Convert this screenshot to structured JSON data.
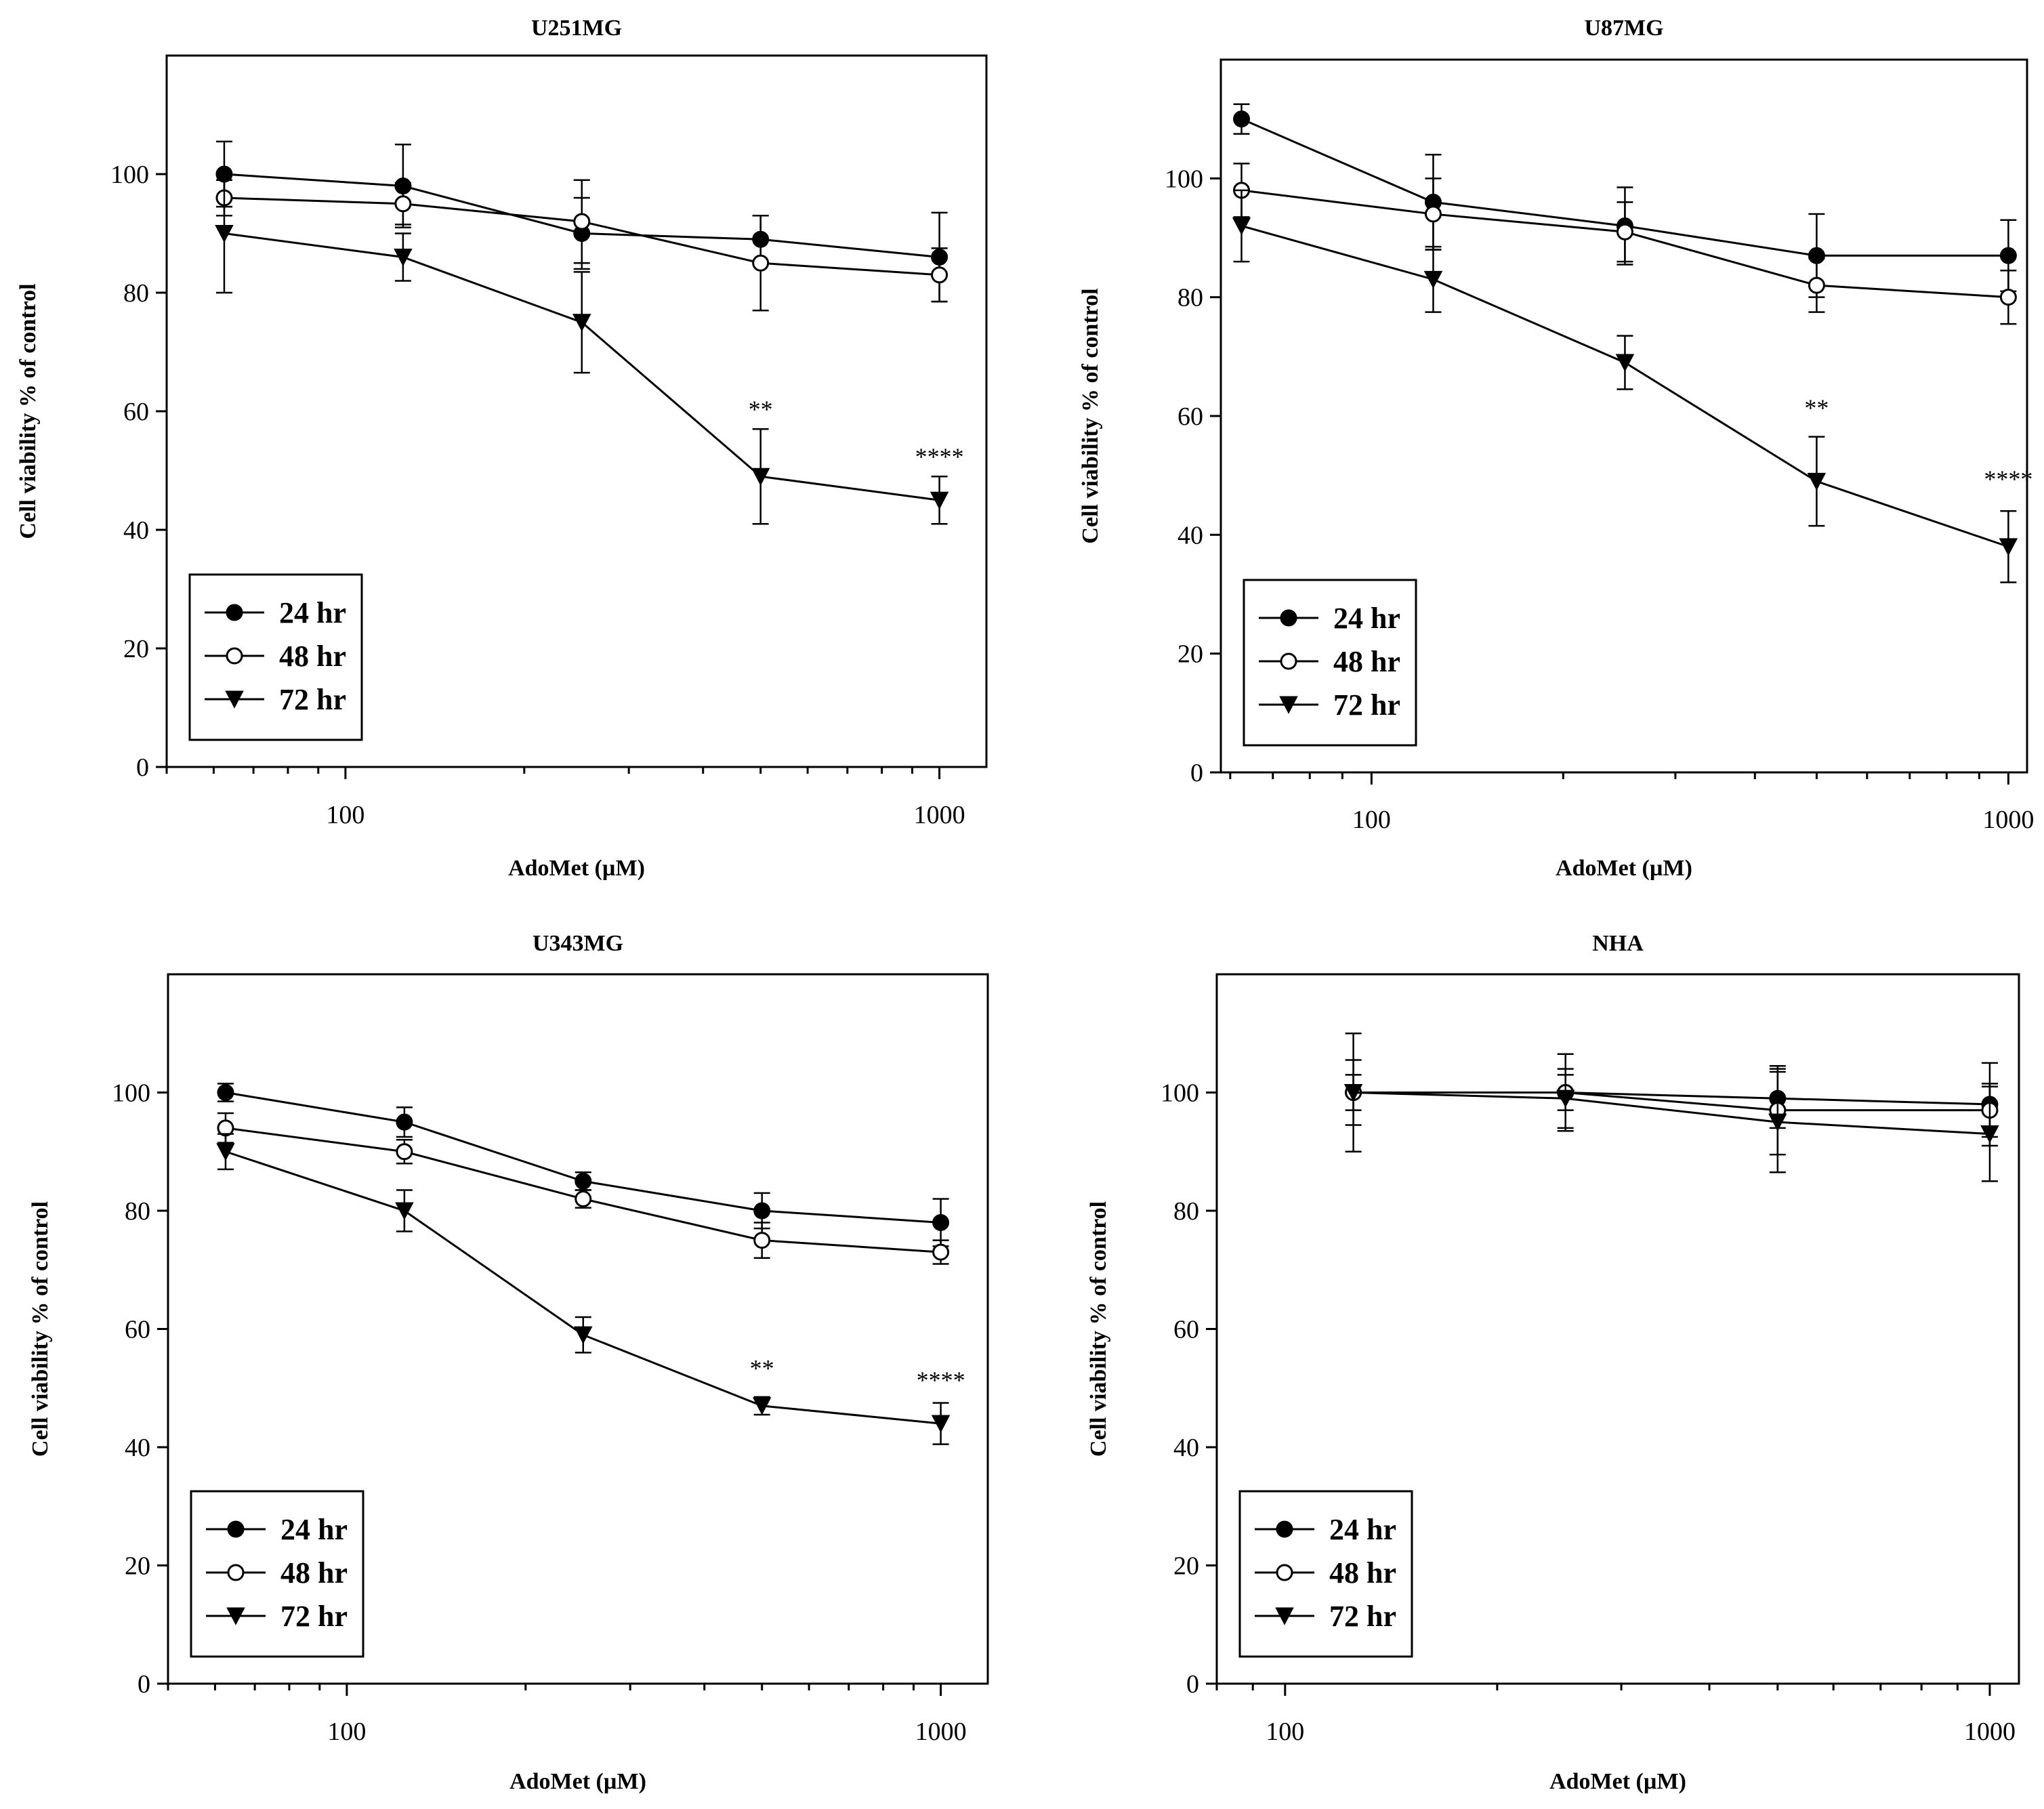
{
  "figure": {
    "series_names": [
      "24 hr",
      "48 hr",
      "72 hr"
    ],
    "series_markers": [
      "filled-circle",
      "open-circle",
      "filled-triangle-down"
    ],
    "line_color": "#000000",
    "background_color": "#ffffff"
  },
  "chart_data": [
    {
      "type": "line",
      "title": "U251MG",
      "xlabel": "AdoMet (µM)",
      "ylabel": "Cell viability % of control",
      "xscale": "log",
      "xlim": [
        50,
        1200
      ],
      "ylim": [
        0,
        120
      ],
      "x_ticks": [
        100,
        1000
      ],
      "x_tick_labels": [
        "100",
        "1000"
      ],
      "y_ticks": [
        0,
        20,
        40,
        60,
        80,
        100
      ],
      "y_tick_labels": [
        "0",
        "20",
        "40",
        "60",
        "80",
        "100"
      ],
      "legend_position": "bottom-left",
      "x": [
        62.5,
        125,
        250,
        500,
        1000
      ],
      "series": [
        {
          "name": "24 hr",
          "values": [
            100,
            98,
            90,
            89,
            86
          ],
          "errors": [
            5.5,
            7,
            6,
            4,
            7.5
          ]
        },
        {
          "name": "48 hr",
          "values": [
            96,
            95,
            92,
            85,
            83
          ],
          "errors": [
            3,
            3.5,
            7,
            8,
            4.5
          ]
        },
        {
          "name": "72 hr",
          "values": [
            90,
            86,
            75,
            49,
            45
          ],
          "errors": [
            10,
            4,
            8.5,
            8,
            4
          ]
        }
      ],
      "annotations": [
        {
          "x": 500,
          "y": 59,
          "text": "**"
        },
        {
          "x": 1000,
          "y": 51,
          "text": "****"
        }
      ]
    },
    {
      "type": "line",
      "title": "U87MG",
      "xlabel": "AdoMet (µM)",
      "ylabel": "Cell viability % of control",
      "xscale": "log",
      "xlim": [
        58,
        1070
      ],
      "ylim": [
        0,
        120
      ],
      "x_ticks": [
        100,
        1000
      ],
      "x_tick_labels": [
        "100",
        "1000"
      ],
      "y_ticks": [
        0,
        20,
        40,
        60,
        80,
        100
      ],
      "y_tick_labels": [
        "0",
        "20",
        "40",
        "60",
        "80",
        "100"
      ],
      "legend_position": "bottom-left",
      "x": [
        62.5,
        125,
        250,
        500,
        1000
      ],
      "series": [
        {
          "name": "24 hr",
          "values": [
            110,
            96,
            92,
            87,
            87
          ],
          "errors": [
            2.5,
            8,
            6.5,
            7,
            6
          ]
        },
        {
          "name": "48 hr",
          "values": [
            98,
            94,
            91,
            82,
            80
          ],
          "errors": [
            4.5,
            6,
            5,
            4.5,
            4.5
          ]
        },
        {
          "name": "72 hr",
          "values": [
            92,
            83,
            69,
            49,
            38
          ],
          "errors": [
            6,
            5.5,
            4.5,
            7.5,
            6
          ]
        }
      ],
      "annotations": [
        {
          "x": 500,
          "y": 60,
          "text": "**"
        },
        {
          "x": 1000,
          "y": 48,
          "text": "****"
        }
      ]
    },
    {
      "type": "line",
      "title": "U343MG",
      "xlabel": "AdoMet (µM)",
      "ylabel": "Cell viability % of control",
      "xscale": "log",
      "xlim": [
        50,
        1200
      ],
      "ylim": [
        0,
        120
      ],
      "x_ticks": [
        100,
        1000
      ],
      "x_tick_labels": [
        "100",
        "1000"
      ],
      "y_ticks": [
        0,
        20,
        40,
        60,
        80,
        100
      ],
      "y_tick_labels": [
        "0",
        "20",
        "40",
        "60",
        "80",
        "100"
      ],
      "legend_position": "bottom-left",
      "x": [
        62.5,
        125,
        250,
        500,
        1000
      ],
      "series": [
        {
          "name": "24 hr",
          "values": [
            100,
            95,
            85,
            80,
            78
          ],
          "errors": [
            1.5,
            2.5,
            1.5,
            3,
            4
          ]
        },
        {
          "name": "48 hr",
          "values": [
            94,
            90,
            82,
            75,
            73
          ],
          "errors": [
            2.5,
            2,
            1.5,
            3,
            2
          ]
        },
        {
          "name": "72 hr",
          "values": [
            90,
            80,
            59,
            47,
            44
          ],
          "errors": [
            3,
            3.5,
            3,
            1.5,
            3.5
          ]
        }
      ],
      "annotations": [
        {
          "x": 500,
          "y": 52,
          "text": "**"
        },
        {
          "x": 1000,
          "y": 50,
          "text": "****"
        }
      ]
    },
    {
      "type": "line",
      "title": "NHA",
      "xlabel": "AdoMet (µM)",
      "ylabel": "Cell viability % of control",
      "xscale": "log",
      "xlim": [
        80,
        1100
      ],
      "ylim": [
        0,
        120
      ],
      "x_ticks": [
        100,
        1000
      ],
      "x_tick_labels": [
        "100",
        "1000"
      ],
      "y_ticks": [
        0,
        20,
        40,
        60,
        80,
        100
      ],
      "y_tick_labels": [
        "0",
        "20",
        "40",
        "60",
        "80",
        "100"
      ],
      "legend_position": "bottom-left",
      "x": [
        125,
        250,
        500,
        1000
      ],
      "series": [
        {
          "name": "24 hr",
          "values": [
            100,
            100,
            99,
            98
          ],
          "errors": [
            10,
            6.5,
            5,
            7
          ]
        },
        {
          "name": "48 hr",
          "values": [
            100,
            100,
            97,
            97
          ],
          "errors": [
            5.5,
            3,
            7.5,
            4.5
          ]
        },
        {
          "name": "72 hr",
          "values": [
            100,
            99,
            95,
            93
          ],
          "errors": [
            3,
            5,
            8.5,
            8
          ]
        }
      ],
      "annotations": []
    }
  ]
}
